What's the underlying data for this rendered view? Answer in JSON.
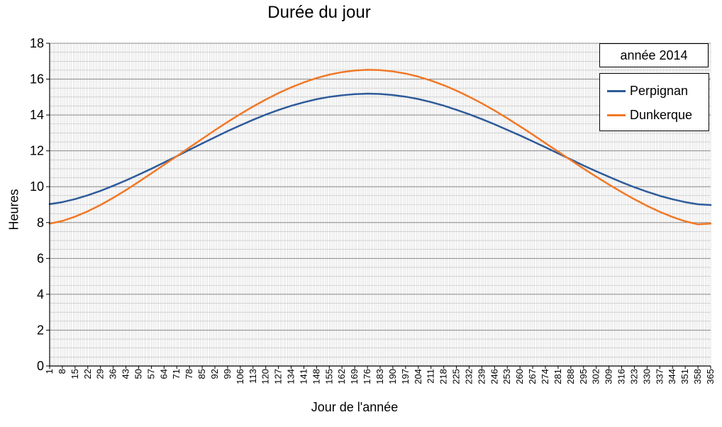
{
  "chart_data": {
    "type": "line",
    "title": "Durée du jour",
    "xlabel": "Jour de l'année",
    "ylabel": "Heures",
    "annotation": "année 2014",
    "xlim": [
      1,
      365
    ],
    "ylim": [
      0,
      18
    ],
    "y_ticks": [
      0,
      2,
      4,
      6,
      8,
      10,
      12,
      14,
      16,
      18
    ],
    "x_tick_labels": [
      "1",
      "8",
      "15",
      "22",
      "29",
      "36",
      "43",
      "50",
      "57",
      "64",
      "71",
      "78",
      "85",
      "92",
      "99",
      "106",
      "113",
      "120",
      "127",
      "134",
      "141",
      "148",
      "155",
      "162",
      "169",
      "176",
      "183",
      "190",
      "197",
      "204",
      "211",
      "218",
      "225",
      "232",
      "239",
      "246",
      "253",
      "260",
      "267",
      "274",
      "281",
      "288",
      "295",
      "302",
      "309",
      "316",
      "323",
      "330",
      "337",
      "344",
      "351",
      "358",
      "365"
    ],
    "grid": true,
    "legend_position": "top-right",
    "x": [
      1,
      8,
      15,
      22,
      29,
      36,
      43,
      50,
      57,
      64,
      71,
      78,
      85,
      92,
      99,
      106,
      113,
      120,
      127,
      134,
      141,
      148,
      155,
      162,
      169,
      176,
      183,
      190,
      197,
      204,
      211,
      218,
      225,
      232,
      239,
      246,
      253,
      260,
      267,
      274,
      281,
      288,
      295,
      302,
      309,
      316,
      323,
      330,
      337,
      344,
      351,
      358,
      365
    ],
    "series": [
      {
        "name": "Perpignan",
        "color": "#2e5b9a",
        "values": [
          9.03,
          9.14,
          9.31,
          9.52,
          9.77,
          10.05,
          10.35,
          10.67,
          11.0,
          11.35,
          11.7,
          12.06,
          12.41,
          12.76,
          13.1,
          13.42,
          13.73,
          14.02,
          14.28,
          14.51,
          14.71,
          14.88,
          15.01,
          15.1,
          15.16,
          15.19,
          15.17,
          15.11,
          15.02,
          14.89,
          14.72,
          14.52,
          14.29,
          14.04,
          13.77,
          13.48,
          13.17,
          12.86,
          12.53,
          12.2,
          11.86,
          11.52,
          11.18,
          10.86,
          10.55,
          10.25,
          9.97,
          9.72,
          9.49,
          9.3,
          9.14,
          9.02,
          8.98
        ]
      },
      {
        "name": "Dunkerque",
        "color": "#f07826",
        "values": [
          7.94,
          8.09,
          8.33,
          8.63,
          8.98,
          9.38,
          9.81,
          10.27,
          10.74,
          11.22,
          11.7,
          12.19,
          12.67,
          13.15,
          13.61,
          14.05,
          14.47,
          14.86,
          15.22,
          15.54,
          15.82,
          16.06,
          16.25,
          16.39,
          16.48,
          16.52,
          16.5,
          16.43,
          16.31,
          16.14,
          15.92,
          15.66,
          15.36,
          15.02,
          14.65,
          14.25,
          13.82,
          13.37,
          12.91,
          12.43,
          11.96,
          11.48,
          11.01,
          10.56,
          10.12,
          9.7,
          9.3,
          8.93,
          8.6,
          8.31,
          8.07,
          7.9,
          7.94
        ]
      }
    ]
  }
}
